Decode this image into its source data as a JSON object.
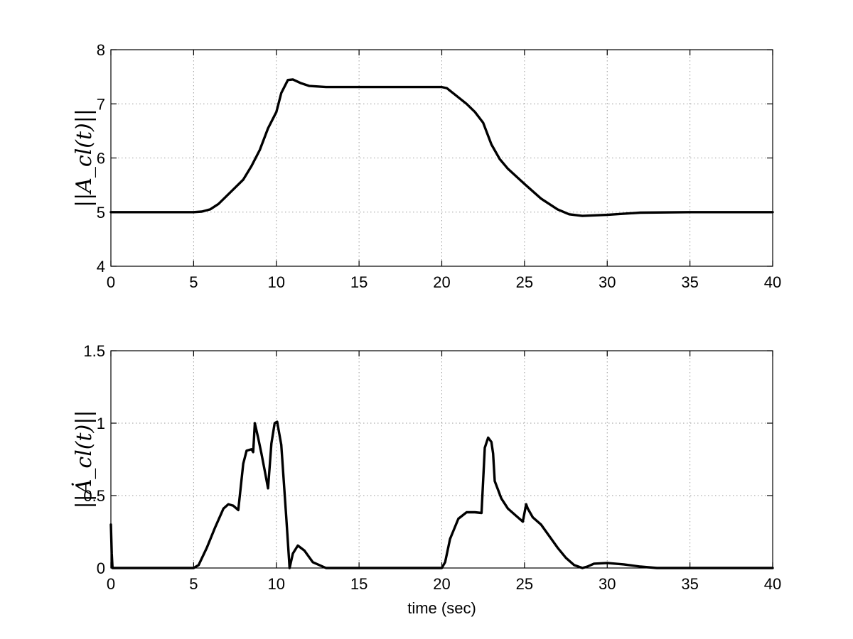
{
  "chart_data": [
    {
      "type": "line",
      "ylabel": "||A_cl(t)||",
      "xlabel": "",
      "xlim": [
        0,
        40
      ],
      "ylim": [
        4,
        8
      ],
      "xticks": [
        "0",
        "5",
        "10",
        "15",
        "20",
        "25",
        "30",
        "35",
        "40"
      ],
      "yticks": [
        "4",
        "5",
        "6",
        "7",
        "8"
      ],
      "grid": true,
      "series": [
        {
          "x": [
            0,
            1,
            3,
            5,
            5.5,
            6,
            6.5,
            7,
            7.5,
            8,
            8.5,
            9,
            9.5,
            10,
            10.3,
            10.7,
            11,
            11.5,
            12,
            13,
            15,
            18,
            20,
            20.3,
            20.8,
            21.5,
            22,
            22.5,
            23,
            23.5,
            24,
            25,
            26,
            27,
            27.7,
            28.5,
            30,
            32,
            35,
            40
          ],
          "y": [
            5.0,
            5.0,
            5.0,
            5.0,
            5.01,
            5.05,
            5.15,
            5.3,
            5.45,
            5.6,
            5.85,
            6.15,
            6.55,
            6.85,
            7.2,
            7.44,
            7.45,
            7.38,
            7.33,
            7.31,
            7.31,
            7.31,
            7.31,
            7.29,
            7.17,
            7.0,
            6.85,
            6.65,
            6.25,
            5.98,
            5.8,
            5.52,
            5.25,
            5.05,
            4.96,
            4.93,
            4.95,
            4.99,
            5.0,
            5.0
          ]
        }
      ]
    },
    {
      "type": "line",
      "ylabel": "||Ȧ_cl(t)||",
      "xlabel": "time (sec)",
      "xlim": [
        0,
        40
      ],
      "ylim": [
        0,
        1.5
      ],
      "xticks": [
        "0",
        "5",
        "10",
        "15",
        "20",
        "25",
        "30",
        "35",
        "40"
      ],
      "yticks": [
        "0",
        "0.5",
        "1",
        "1.5"
      ],
      "grid": true,
      "series": [
        {
          "x": [
            0,
            0.05,
            0.1,
            5,
            5.3,
            5.8,
            6.3,
            6.8,
            7.1,
            7.4,
            7.7,
            8,
            8.2,
            8.5,
            8.6,
            8.7,
            8.9,
            9.1,
            9.3,
            9.5,
            9.7,
            9.9,
            10.05,
            10.3,
            10.6,
            10.8,
            11,
            11.3,
            11.7,
            12.2,
            13,
            15,
            20,
            20.2,
            20.5,
            21,
            21.5,
            22,
            22.4,
            22.6,
            22.8,
            23,
            23.1,
            23.2,
            23.6,
            24,
            24.5,
            24.9,
            25.1,
            25.2,
            25.5,
            26,
            26.5,
            27,
            27.5,
            28,
            28.5,
            28.8,
            29.2,
            30,
            31,
            32,
            33,
            35,
            40
          ],
          "y": [
            0.3,
            0.1,
            0.0,
            0.0,
            0.02,
            0.14,
            0.28,
            0.41,
            0.44,
            0.43,
            0.4,
            0.72,
            0.81,
            0.82,
            0.8,
            1.0,
            0.9,
            0.79,
            0.67,
            0.55,
            0.86,
            1.0,
            1.01,
            0.85,
            0.35,
            0.0,
            0.1,
            0.155,
            0.12,
            0.04,
            0.0,
            0.0,
            0.0,
            0.04,
            0.2,
            0.34,
            0.385,
            0.385,
            0.38,
            0.83,
            0.9,
            0.87,
            0.79,
            0.6,
            0.48,
            0.41,
            0.36,
            0.32,
            0.44,
            0.41,
            0.35,
            0.3,
            0.22,
            0.14,
            0.07,
            0.02,
            0.0,
            0.01,
            0.03,
            0.035,
            0.025,
            0.01,
            0.0,
            0.0,
            0.0
          ]
        }
      ]
    }
  ]
}
